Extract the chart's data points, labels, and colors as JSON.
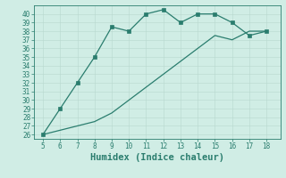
{
  "xlabel": "Humidex (Indice chaleur)",
  "line1_x": [
    5,
    6,
    7,
    8,
    9,
    10,
    11,
    12,
    13,
    14,
    15,
    16,
    17,
    18
  ],
  "line1_y": [
    26,
    29,
    32,
    35,
    38.5,
    38,
    40,
    40.5,
    39,
    40,
    40,
    39,
    37.5,
    38
  ],
  "line2_x": [
    5,
    6,
    7,
    8,
    9,
    10,
    11,
    12,
    13,
    14,
    15,
    16,
    17,
    18
  ],
  "line2_y": [
    26,
    26.5,
    27,
    27.5,
    28.5,
    30,
    31.5,
    33,
    34.5,
    36,
    37.5,
    37,
    38,
    38
  ],
  "line_color": "#2a7d6e",
  "bg_color": "#d0ede5",
  "grid_color_major": "#b8d8ce",
  "grid_color_minor": "#c8e5dc",
  "xlim": [
    4.5,
    18.8
  ],
  "ylim": [
    25.5,
    41
  ],
  "xticks": [
    5,
    6,
    7,
    8,
    9,
    10,
    11,
    12,
    13,
    14,
    15,
    16,
    17,
    18
  ],
  "yticks": [
    26,
    27,
    28,
    29,
    30,
    31,
    32,
    33,
    34,
    35,
    36,
    37,
    38,
    39,
    40
  ],
  "tick_fontsize": 5.5,
  "xlabel_fontsize": 7.5,
  "marker_size": 2.5,
  "line_width": 0.9
}
